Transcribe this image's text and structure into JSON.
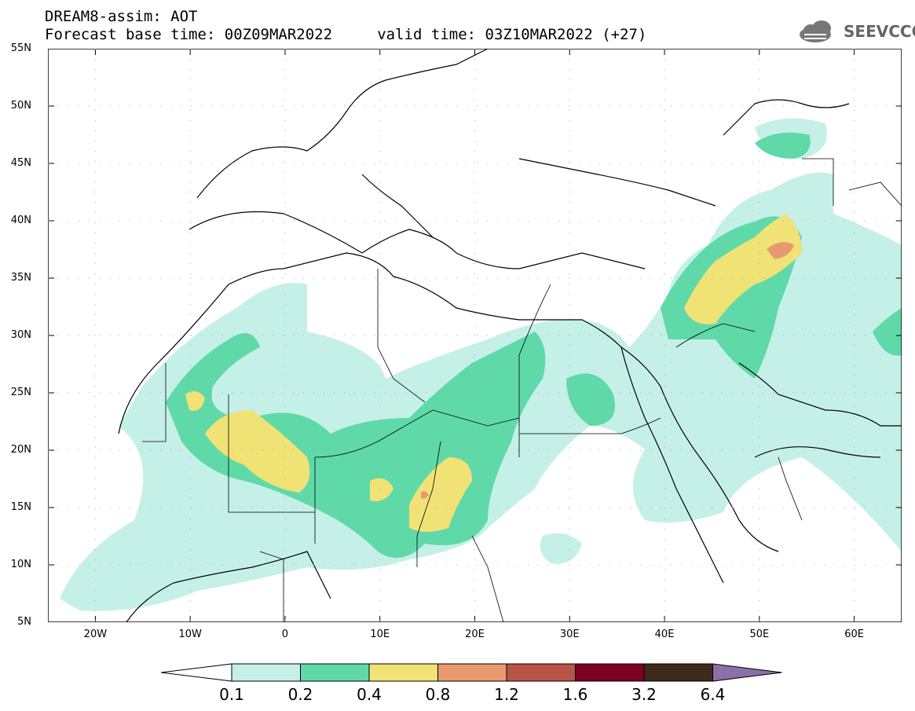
{
  "title": {
    "line1": "DREAM8-assim: AOT",
    "line2": "Forecast base time: 00Z09MAR2022     valid time: 03Z10MAR2022 (+27)"
  },
  "logo": {
    "text": "SEEVCCC",
    "icon": "cloud-icon"
  },
  "map": {
    "lon_range": [
      -25,
      65
    ],
    "lat_range": [
      5,
      55
    ],
    "lat_labels": [
      "55N",
      "50N",
      "45N",
      "40N",
      "35N",
      "30N",
      "25N",
      "20N",
      "15N",
      "10N",
      "5N"
    ],
    "lon_labels": [
      "20W",
      "10W",
      "0",
      "10E",
      "20E",
      "30E",
      "40E",
      "50E",
      "60E"
    ]
  },
  "colorbar": {
    "labels": [
      "0.1",
      "0.2",
      "0.4",
      "0.8",
      "1.2",
      "1.6",
      "3.2",
      "6.4"
    ],
    "colors": [
      "#c5f0e8",
      "#5fd9a8",
      "#f1e276",
      "#e89a6e",
      "#b85548",
      "#7d0022",
      "#3d2a1a",
      "#8b6fa8"
    ]
  }
}
